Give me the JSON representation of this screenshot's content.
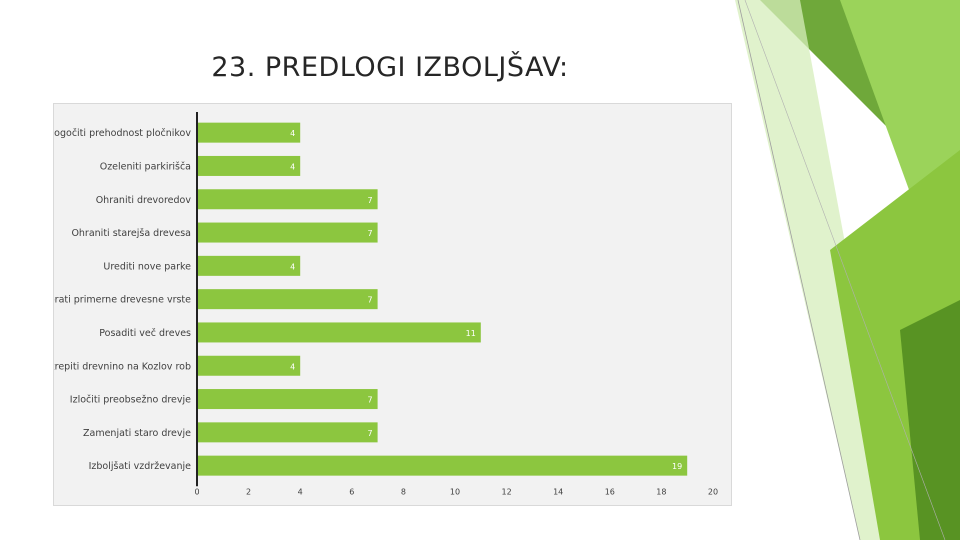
{
  "slide": {
    "title": "23. PREDLOGI IZBOLJŠAV:"
  },
  "colors": {
    "bar": "#8cc63f",
    "bar_label": "#ffffff",
    "accent_dark": "#4f8a1f",
    "accent_mid": "#6fa83a",
    "accent_light": "#9bd35a",
    "accent_pale": "#d6eebb"
  },
  "chart_data": {
    "type": "bar",
    "orientation": "horizontal",
    "categories": [
      "Omogočiti prehodnost pločnikov",
      "Ozeleniti parkirišča",
      "Ohraniti drevoredov",
      "Ohraniti starejša drevesa",
      "Urediti nove parke",
      "Izbrati primerne drevesne vrste",
      "Posaditi več dreves",
      "Okrepiti drevnino na Kozlov rob",
      "Izločiti preobsežno drevje",
      "Zamenjati staro drevje",
      "Izboljšati vzdrževanje"
    ],
    "values": [
      4,
      4,
      7,
      7,
      4,
      7,
      11,
      4,
      7,
      7,
      19
    ],
    "xlim": [
      0,
      20
    ],
    "xticks": [
      0,
      2,
      4,
      6,
      8,
      10,
      12,
      14,
      16,
      18,
      20
    ],
    "data_labels": true,
    "grid": false,
    "legend": "none"
  }
}
